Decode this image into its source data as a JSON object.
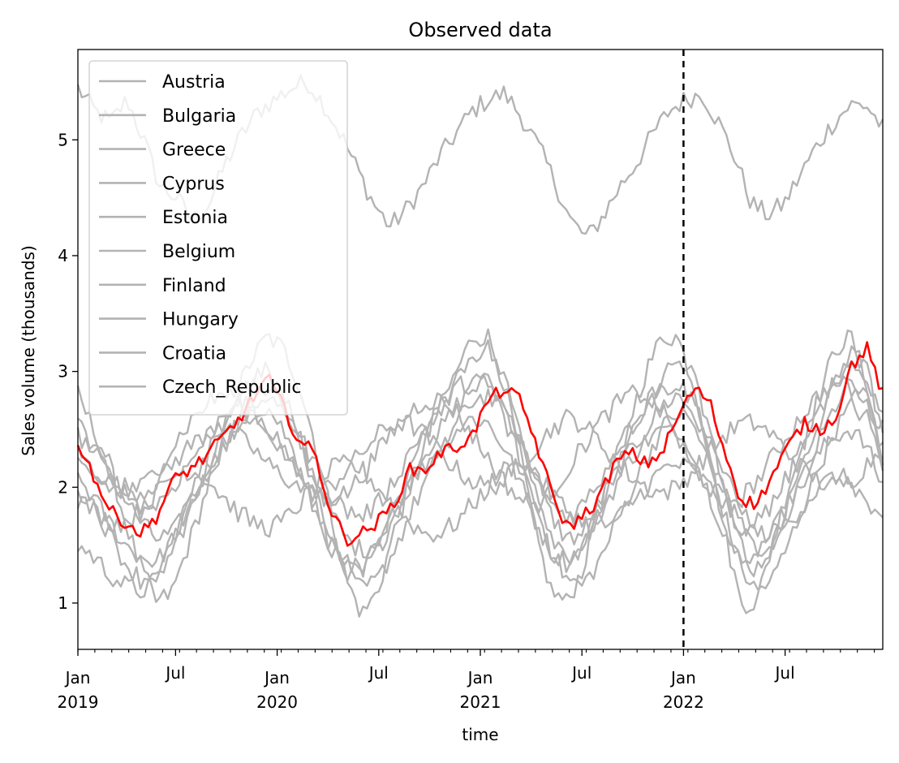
{
  "chart_data": {
    "type": "line",
    "title": "Observed data",
    "xlabel": "time",
    "ylabel": "Sales volume (thousands)",
    "ylim": [
      0.6,
      5.78
    ],
    "xlim": [
      "2019-01-07",
      "2022-12-26"
    ],
    "y_ticks": [
      {
        "value": 1,
        "label": "1"
      },
      {
        "value": 2,
        "label": "2"
      },
      {
        "value": 3,
        "label": "3"
      },
      {
        "value": 4,
        "label": "4"
      },
      {
        "value": 5,
        "label": "5"
      }
    ],
    "x_ticks": [
      {
        "week": 0,
        "label1": "Jan",
        "label2": "2019"
      },
      {
        "week": 25,
        "label1": "Jul",
        "label2": ""
      },
      {
        "week": 51,
        "label1": "Jan",
        "label2": "2020"
      },
      {
        "week": 77,
        "label1": "Jul",
        "label2": ""
      },
      {
        "week": 103,
        "label1": "Jan",
        "label2": "2021"
      },
      {
        "week": 129,
        "label1": "Jul",
        "label2": ""
      },
      {
        "week": 155,
        "label1": "Jan",
        "label2": "2022"
      },
      {
        "week": 181,
        "label1": "Jul",
        "label2": ""
      }
    ],
    "vertical_line": {
      "week": 155,
      "label": "2022-01-03",
      "color": "#000000",
      "style": "dashed"
    },
    "highlight_color": "#ff0000",
    "series_color": "#b3b3b3",
    "legend_position": "upper-left",
    "n_weeks": 207,
    "series": [
      {
        "name": "Austria",
        "in_legend": true,
        "values": [
          5.45,
          5.25,
          5.15,
          5.35,
          5.0,
          4.6,
          4.5,
          4.3,
          4.45,
          4.8,
          5.05,
          5.25,
          5.35,
          5.45,
          5.5,
          5.3,
          5.05,
          4.75,
          4.45,
          4.25,
          4.4,
          4.6,
          4.85,
          5.05,
          5.25,
          5.35,
          5.4,
          5.2,
          4.95,
          4.65,
          4.3,
          4.15,
          4.35,
          4.6,
          4.8,
          5.05,
          5.25,
          5.35,
          5.4,
          5.15,
          4.85,
          4.45,
          4.35,
          4.45,
          4.7,
          4.95,
          5.15,
          5.3,
          5.3,
          5.1
        ]
      },
      {
        "name": "Bulgaria",
        "in_legend": true,
        "values": [
          2.8,
          2.5,
          2.2,
          1.7,
          1.3,
          1.0,
          1.1,
          1.5,
          1.9,
          2.4,
          2.8,
          3.1,
          3.3,
          3.2,
          2.9,
          2.4,
          1.8,
          1.2,
          0.9,
          1.1,
          1.6,
          2.0,
          2.4,
          2.7,
          3.0,
          3.3,
          3.3,
          2.9,
          2.3,
          1.6,
          1.1,
          1.0,
          1.3,
          1.8,
          2.2,
          2.6,
          3.0,
          3.3,
          3.3,
          2.9,
          2.3,
          1.6,
          1.0,
          1.0,
          1.5,
          2.0,
          2.4,
          2.8,
          3.2,
          3.3,
          2.9,
          2.2
        ]
      },
      {
        "name": "Greece",
        "in_legend": true,
        "values": [
          2.6,
          2.35,
          2.1,
          1.9,
          1.7,
          1.55,
          1.6,
          1.8,
          2.1,
          2.35,
          2.55,
          2.7,
          2.8,
          2.65,
          2.4,
          2.1,
          1.8,
          1.55,
          1.45,
          1.55,
          1.8,
          2.05,
          2.3,
          2.5,
          2.7,
          2.85,
          2.9,
          2.7,
          2.4,
          2.1,
          1.75,
          1.55,
          1.6,
          1.85,
          2.1,
          2.3,
          2.5,
          2.7,
          2.8,
          2.65,
          2.3,
          1.95,
          1.6,
          1.45,
          1.6,
          1.85,
          2.1,
          2.4,
          2.7,
          2.9,
          2.75,
          2.3
        ]
      },
      {
        "name": "Cyprus",
        "in_legend": true,
        "values": [
          2.1,
          1.9,
          1.7,
          1.5,
          1.4,
          1.35,
          1.55,
          1.85,
          2.1,
          2.3,
          2.45,
          2.6,
          2.55,
          2.35,
          2.1,
          1.8,
          1.5,
          1.3,
          1.25,
          1.45,
          1.75,
          2.0,
          2.2,
          2.35,
          2.5,
          2.6,
          2.55,
          2.35,
          2.05,
          1.7,
          1.45,
          1.35,
          1.5,
          1.75,
          2.0,
          2.25,
          2.4,
          2.5,
          2.45,
          2.25,
          1.95,
          1.6,
          1.35,
          1.3,
          1.5,
          1.8,
          2.05,
          2.3,
          2.45,
          2.5,
          2.35,
          2.0
        ]
      },
      {
        "name": "Estonia",
        "in_legend": true,
        "values": [
          1.5,
          1.4,
          1.25,
          1.15,
          1.1,
          1.2,
          1.45,
          1.75,
          2.05,
          2.3,
          2.5,
          2.65,
          2.7,
          2.5,
          2.2,
          1.85,
          1.5,
          1.25,
          1.1,
          1.2,
          1.45,
          1.75,
          2.05,
          2.3,
          2.55,
          2.75,
          2.8,
          2.6,
          2.25,
          1.85,
          1.45,
          1.2,
          1.15,
          1.35,
          1.65,
          1.95,
          2.25,
          2.5,
          2.65,
          2.55,
          2.2,
          1.75,
          1.3,
          1.1,
          1.2,
          1.5,
          1.85,
          2.2,
          2.5,
          2.7,
          2.6,
          2.2
        ]
      },
      {
        "name": "Belgium",
        "in_legend": true,
        "values": [
          2.3,
          2.15,
          2.05,
          2.0,
          1.95,
          2.05,
          2.2,
          2.35,
          2.45,
          2.5,
          2.45,
          2.35,
          2.2,
          2.1,
          2.0,
          1.95,
          2.0,
          2.15,
          2.3,
          2.45,
          2.55,
          2.55,
          2.45,
          2.3,
          2.15,
          2.05,
          2.0,
          2.05,
          2.2,
          2.35,
          2.5,
          2.6,
          2.55,
          2.4,
          2.25,
          2.1,
          2.0,
          1.95,
          2.0,
          2.15,
          2.3,
          2.45,
          2.55,
          2.55,
          2.45,
          2.3,
          2.15,
          2.05,
          2.0,
          2.05,
          2.2,
          2.35
        ]
      },
      {
        "name": "Finland",
        "in_legend": true,
        "values": [
          1.9,
          1.8,
          1.7,
          1.7,
          1.8,
          1.95,
          2.1,
          2.15,
          2.1,
          1.95,
          1.8,
          1.7,
          1.65,
          1.7,
          1.85,
          2.0,
          2.15,
          2.2,
          2.15,
          2.0,
          1.85,
          1.7,
          1.6,
          1.6,
          1.7,
          1.85,
          2.0,
          2.15,
          2.2,
          2.1,
          1.95,
          1.8,
          1.7,
          1.65,
          1.7,
          1.85,
          2.0,
          2.15,
          2.2,
          2.15,
          2.0,
          1.85,
          1.7,
          1.6,
          1.6,
          1.7,
          1.85,
          2.0,
          2.1,
          2.05,
          1.85,
          1.65
        ]
      },
      {
        "name": "Hungary",
        "in_legend": true,
        "values": [
          2.2,
          2.1,
          2.0,
          1.95,
          2.0,
          2.15,
          2.35,
          2.55,
          2.7,
          2.8,
          2.8,
          2.7,
          2.5,
          2.3,
          2.1,
          1.95,
          1.9,
          1.95,
          2.1,
          2.3,
          2.5,
          2.65,
          2.75,
          2.75,
          2.65,
          2.45,
          2.25,
          2.05,
          1.9,
          1.85,
          1.95,
          2.15,
          2.35,
          2.55,
          2.7,
          2.8,
          2.8,
          2.65,
          2.45,
          2.2,
          2.0,
          1.9,
          1.9,
          2.05,
          2.25,
          2.45,
          2.65,
          2.8,
          2.9,
          2.85,
          2.7,
          2.5
        ]
      },
      {
        "name": "Croatia",
        "in_legend": true,
        "values": [
          2.0,
          1.85,
          1.6,
          1.35,
          1.2,
          1.25,
          1.5,
          1.85,
          2.2,
          2.5,
          2.75,
          2.95,
          3.0,
          2.8,
          2.45,
          2.0,
          1.6,
          1.35,
          1.3,
          1.5,
          1.85,
          2.15,
          2.45,
          2.7,
          2.95,
          3.15,
          3.2,
          2.95,
          2.5,
          2.0,
          1.6,
          1.4,
          1.5,
          1.8,
          2.1,
          2.4,
          2.7,
          2.95,
          3.1,
          2.95,
          2.5,
          1.95,
          1.5,
          1.35,
          1.5,
          1.85,
          2.2,
          2.55,
          2.9,
          3.15,
          3.0,
          2.5
        ]
      },
      {
        "name": "Czech_Republic",
        "in_legend": true,
        "values": [
          2.45,
          2.3,
          2.1,
          1.95,
          1.85,
          1.85,
          2.0,
          2.2,
          2.4,
          2.6,
          2.75,
          2.85,
          2.85,
          2.7,
          2.45,
          2.2,
          1.95,
          1.8,
          1.75,
          1.85,
          2.05,
          2.3,
          2.5,
          2.7,
          2.85,
          2.95,
          2.9,
          2.7,
          2.4,
          2.1,
          1.85,
          1.75,
          1.85,
          2.05,
          2.3,
          2.5,
          2.7,
          2.85,
          2.9,
          2.75,
          2.45,
          2.1,
          1.8,
          1.7,
          1.85,
          2.1,
          2.4,
          2.65,
          2.9,
          3.05,
          2.95,
          2.6
        ]
      },
      {
        "name": "Highlighted",
        "in_legend": false,
        "highlight": true,
        "values": [
          2.4,
          2.1,
          1.8,
          1.7,
          1.6,
          1.75,
          2.05,
          2.15,
          2.25,
          2.4,
          2.55,
          2.75,
          2.95,
          2.7,
          2.4,
          2.3,
          1.8,
          1.55,
          1.6,
          1.7,
          1.85,
          2.15,
          2.15,
          2.3,
          2.35,
          2.45,
          2.75,
          2.85,
          2.75,
          2.4,
          1.95,
          1.65,
          1.75,
          1.9,
          2.2,
          2.3,
          2.2,
          2.3,
          2.6,
          2.85,
          2.75,
          2.3,
          1.9,
          1.85,
          2.1,
          2.35,
          2.55,
          2.5,
          2.6,
          3.05,
          3.2,
          2.8
        ]
      }
    ]
  }
}
